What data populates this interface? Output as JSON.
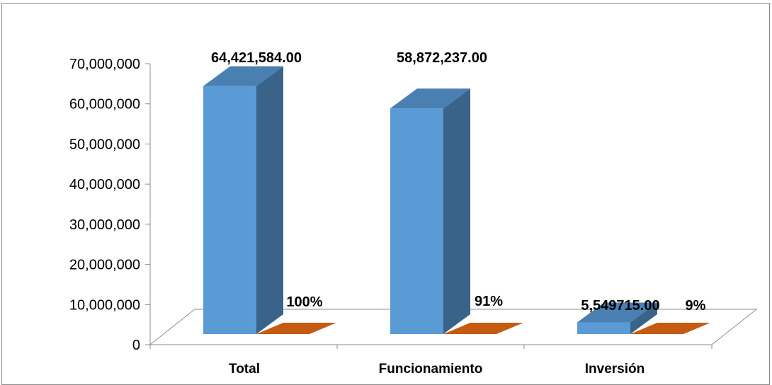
{
  "chart_data": {
    "type": "bar",
    "categories": [
      "Total",
      "Funcionamiento",
      "Inversión"
    ],
    "series": [
      {
        "values": [
          64421584.0,
          58872237.0,
          5549715.0
        ],
        "color": "#5b9bd5"
      },
      {
        "values": [
          100,
          91,
          9
        ],
        "color": "#c55a11"
      }
    ],
    "data_labels": {
      "value": [
        "64,421,584.00",
        "58,872,237.00",
        "5,549715.00"
      ],
      "percent": [
        "100%",
        "91%",
        "9%"
      ]
    },
    "yticks": [
      "0",
      "10,000,000",
      "20,000,000",
      "30,000,000",
      "40,000,000",
      "50,000,000",
      "60,000,000",
      "70,000,000"
    ],
    "ylim": [
      0,
      70000000
    ],
    "three_d": true,
    "grid": false,
    "legend": "none"
  }
}
